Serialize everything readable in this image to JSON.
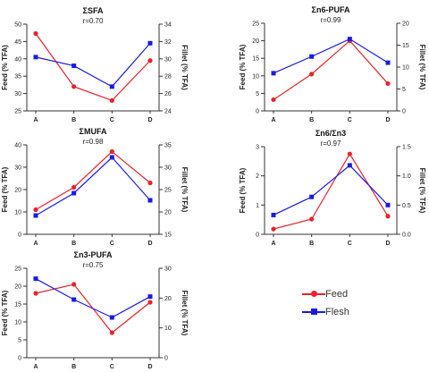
{
  "colors": {
    "feed": "#e8232a",
    "flesh": "#1a1ae6",
    "axis": "#333333"
  },
  "legend": {
    "feed_label": "Feed",
    "flesh_label": "Flesh"
  },
  "chart_data": [
    {
      "type": "line",
      "title": "ΣSFA",
      "annotation": "r=0.70",
      "categories": [
        "A",
        "B",
        "C",
        "D"
      ],
      "ylabel": "Feed (% TFA)",
      "y2label": "Fillet (% TFA)",
      "ylim": [
        25,
        50
      ],
      "yticks": [
        25,
        30,
        35,
        40,
        45,
        50
      ],
      "y2lim": [
        24,
        34
      ],
      "y2ticks": [
        24,
        26,
        28,
        30,
        32,
        34
      ],
      "series": [
        {
          "name": "Feed",
          "axis": "left",
          "values": [
            47.3,
            32.0,
            28.0,
            39.5
          ]
        },
        {
          "name": "Flesh",
          "axis": "right",
          "values": [
            30.2,
            29.2,
            26.8,
            31.8
          ]
        }
      ]
    },
    {
      "type": "line",
      "title": "Σn6-PUFA",
      "annotation": "r=0.99",
      "categories": [
        "A",
        "B",
        "C",
        "D"
      ],
      "ylabel": "Feed (% TFA)",
      "y2label": "Fillet (% TFA)",
      "ylim": [
        0,
        25
      ],
      "yticks": [
        0,
        5,
        10,
        15,
        20,
        25
      ],
      "y2lim": [
        0,
        20
      ],
      "y2ticks": [
        0,
        5,
        10,
        15,
        20
      ],
      "series": [
        {
          "name": "Feed",
          "axis": "left",
          "values": [
            3.2,
            10.5,
            20.0,
            7.8
          ]
        },
        {
          "name": "Flesh",
          "axis": "right",
          "values": [
            8.6,
            12.4,
            16.4,
            11.0
          ]
        }
      ]
    },
    {
      "type": "line",
      "title": "ΣMUFA",
      "annotation": "r=0.98",
      "categories": [
        "A",
        "B",
        "C",
        "D"
      ],
      "ylabel": "Feed (% TFA)",
      "y2label": "Fillet (% TFA)",
      "ylim": [
        0,
        40
      ],
      "yticks": [
        0,
        10,
        20,
        30,
        40
      ],
      "y2lim": [
        15,
        35
      ],
      "y2ticks": [
        15,
        20,
        25,
        30,
        35
      ],
      "series": [
        {
          "name": "Feed",
          "axis": "left",
          "values": [
            11.0,
            21.0,
            37.0,
            23.0
          ]
        },
        {
          "name": "Flesh",
          "axis": "right",
          "values": [
            19.2,
            24.2,
            32.2,
            22.6
          ]
        }
      ]
    },
    {
      "type": "line",
      "title": "Σn6/Σn3",
      "annotation": "r=0.97",
      "categories": [
        "A",
        "B",
        "C",
        "D"
      ],
      "ylabel": "Feed (% TFA)",
      "y2label": "Fillet (% TFA)",
      "ylim": [
        0,
        3
      ],
      "yticks": [
        0,
        1,
        2,
        3
      ],
      "y2lim": [
        0,
        1.5
      ],
      "y2ticks": [
        0.0,
        0.5,
        1.0,
        1.5
      ],
      "y2ticklabels": [
        "0.0",
        "0.5",
        "1.0",
        "1.5"
      ],
      "series": [
        {
          "name": "Feed",
          "axis": "left",
          "values": [
            0.18,
            0.52,
            2.75,
            0.62
          ]
        },
        {
          "name": "Flesh",
          "axis": "right",
          "values": [
            0.33,
            0.64,
            1.18,
            0.5
          ]
        }
      ]
    },
    {
      "type": "line",
      "title": "Σn3-PUFA",
      "annotation": "r=0.75",
      "categories": [
        "A",
        "B",
        "C",
        "D"
      ],
      "ylabel": "Feed (% TFA)",
      "y2label": "Fillet (% TFA)",
      "ylim": [
        0,
        25
      ],
      "yticks": [
        0,
        5,
        10,
        15,
        20,
        25
      ],
      "y2lim": [
        0,
        30
      ],
      "y2ticks": [
        0,
        10,
        20,
        30
      ],
      "series": [
        {
          "name": "Feed",
          "axis": "left",
          "values": [
            18.0,
            20.5,
            7.0,
            15.5
          ]
        },
        {
          "name": "Flesh",
          "axis": "right",
          "values": [
            26.5,
            19.5,
            13.5,
            20.5
          ]
        }
      ]
    }
  ]
}
